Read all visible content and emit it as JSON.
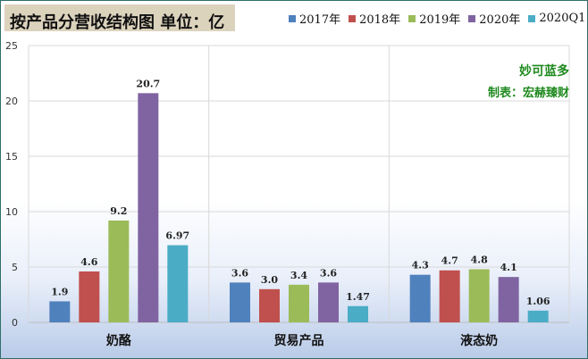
{
  "title": "按产品分营收结构图 单位：亿",
  "maker": {
    "line1": "妙可蓝多",
    "line2": "制表：宏赫臻财"
  },
  "chart_data": {
    "type": "bar",
    "title": "按产品分营收结构图 单位：亿",
    "categories": [
      "奶酪",
      "贸易产品",
      "液态奶"
    ],
    "ylim": [
      0,
      25
    ],
    "yticks": [
      0,
      5,
      10,
      15,
      20,
      25
    ],
    "grid": true,
    "legend_position": "top-right",
    "series": [
      {
        "name": "2017年",
        "color": "#4f81bd",
        "values": [
          1.9,
          3.6,
          4.3
        ],
        "labels": [
          "1.9",
          "3.6",
          "4.3"
        ]
      },
      {
        "name": "2018年",
        "color": "#c0504d",
        "values": [
          4.6,
          3.0,
          4.7
        ],
        "labels": [
          "4.6",
          "3.0",
          "4.7"
        ]
      },
      {
        "name": "2019年",
        "color": "#9bbb59",
        "values": [
          9.2,
          3.4,
          4.8
        ],
        "labels": [
          "9.2",
          "3.4",
          "4.8"
        ]
      },
      {
        "name": "2020年",
        "color": "#8064a2",
        "values": [
          20.7,
          3.6,
          4.1
        ],
        "labels": [
          "20.7",
          "3.6",
          "4.1"
        ]
      },
      {
        "name": "2020Q1",
        "color": "#4bacc6",
        "values": [
          6.97,
          1.47,
          1.06
        ],
        "labels": [
          "6.97",
          "1.47",
          "1.06"
        ]
      }
    ]
  }
}
